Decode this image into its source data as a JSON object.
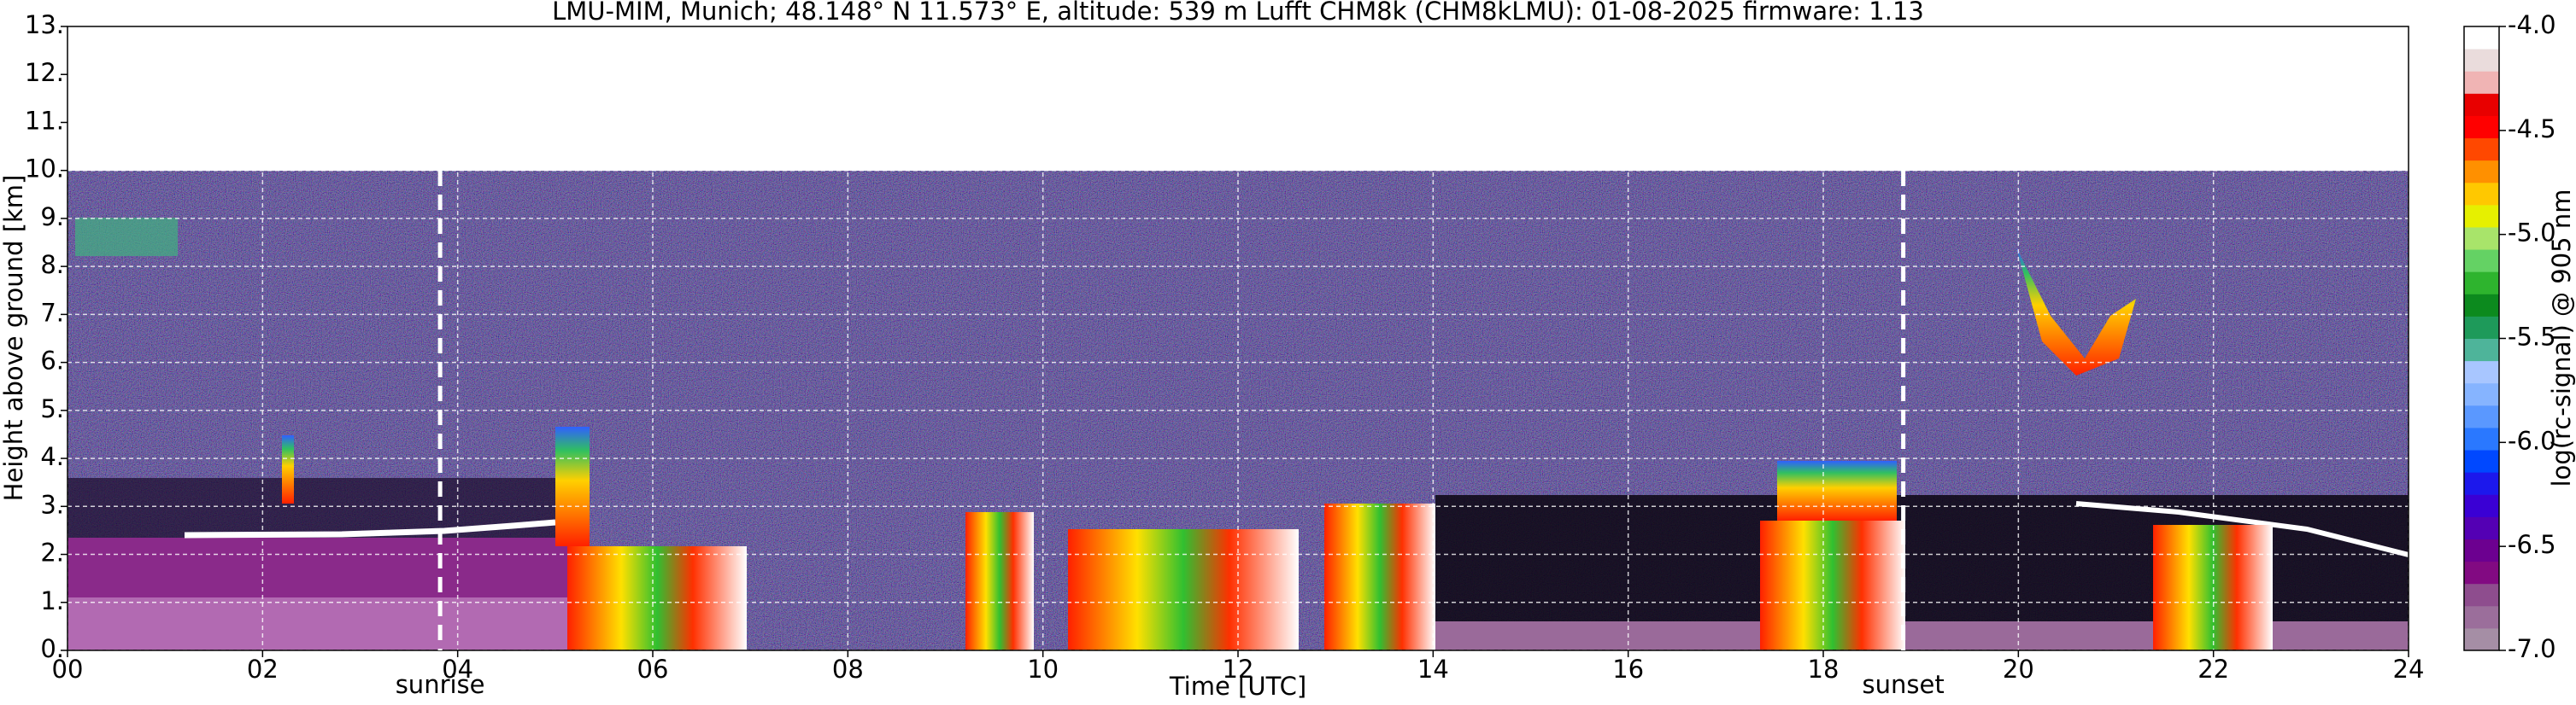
{
  "chart_data": {
    "type": "heatmap",
    "title": "LMU-MIM, Munich; 48.148° N 11.573° E, altitude: 539 m    Lufft CHM8k (CHM8kLMU): 01-08-2025    firmware: 1.13",
    "x_label": "Time [UTC]",
    "y_label": "Height above ground [km]",
    "xlim": [
      0,
      24
    ],
    "xticks": [
      {
        "value": 0,
        "label": "00"
      },
      {
        "value": 2,
        "label": "02"
      },
      {
        "value": 4,
        "label": "04"
      },
      {
        "value": 6,
        "label": "06"
      },
      {
        "value": 8,
        "label": "08"
      },
      {
        "value": 10,
        "label": "10"
      },
      {
        "value": 12,
        "label": "12"
      },
      {
        "value": 14,
        "label": "14"
      },
      {
        "value": 16,
        "label": "16"
      },
      {
        "value": 18,
        "label": "18"
      },
      {
        "value": 20,
        "label": "20"
      },
      {
        "value": 22,
        "label": "22"
      },
      {
        "value": 24,
        "label": "24"
      }
    ],
    "ylim": [
      0,
      13
    ],
    "yticks": [
      {
        "value": 0,
        "label": "0."
      },
      {
        "value": 1,
        "label": "1."
      },
      {
        "value": 2,
        "label": "2."
      },
      {
        "value": 3,
        "label": "3."
      },
      {
        "value": 4,
        "label": "4."
      },
      {
        "value": 5,
        "label": "5."
      },
      {
        "value": 6,
        "label": "6."
      },
      {
        "value": 7,
        "label": "7."
      },
      {
        "value": 8,
        "label": "8."
      },
      {
        "value": 9,
        "label": "9."
      },
      {
        "value": 10,
        "label": "10."
      },
      {
        "value": 11,
        "label": "11."
      },
      {
        "value": 12,
        "label": "12."
      },
      {
        "value": 13,
        "label": "13."
      }
    ],
    "grid": true,
    "annotations": [
      {
        "x": 3.82,
        "label": "sunrise"
      },
      {
        "x": 18.82,
        "label": "sunset"
      }
    ],
    "colorbar": {
      "label": "log(rc-signal) @ 905 nm",
      "lim": [
        -7,
        -4
      ],
      "ticks": [
        {
          "value": -4,
          "label": "-4.0"
        },
        {
          "value": -4.5,
          "label": "-4.5"
        },
        {
          "value": -5,
          "label": "-5.0"
        },
        {
          "value": -5.5,
          "label": "-5.5"
        },
        {
          "value": -6,
          "label": "-6.0"
        },
        {
          "value": -6.5,
          "label": "-6.5"
        },
        {
          "value": -7,
          "label": "-7.0"
        }
      ],
      "colors": [
        "#a58ea5",
        "#9b6e9b",
        "#8e4d8e",
        "#820a82",
        "#6c0090",
        "#5400b4",
        "#3a00d4",
        "#1c18ec",
        "#0048ff",
        "#2a78ff",
        "#5a98ff",
        "#86b4ff",
        "#a8c6ff",
        "#4eb49a",
        "#1e9a5a",
        "#0c8a1e",
        "#2eb42e",
        "#64d264",
        "#a8e46a",
        "#e6f000",
        "#ffc800",
        "#ff9000",
        "#ff4800",
        "#ff0000",
        "#e80000",
        "#f0b4b4",
        "#eadcdc",
        "#ffffff"
      ]
    }
  }
}
